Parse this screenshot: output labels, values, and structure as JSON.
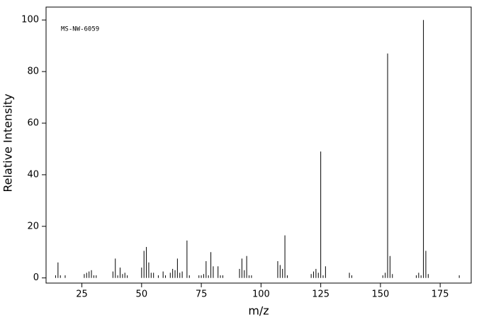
{
  "chart_data": {
    "type": "stem",
    "annotation": "MS-NW-6059",
    "x_label": "m/z",
    "y_label": "Relative Intensity",
    "color": "#000000",
    "x": [
      14,
      15,
      16,
      18,
      26,
      27,
      28,
      29,
      30,
      31,
      38,
      39,
      40,
      41,
      42,
      43,
      44,
      50,
      51,
      52,
      53,
      54,
      55,
      57,
      59,
      60,
      62,
      63,
      64,
      65,
      66,
      67,
      69,
      70,
      74,
      75,
      76,
      77,
      78,
      79,
      80,
      82,
      83,
      84,
      91,
      92,
      93,
      94,
      95,
      96,
      107,
      108,
      109,
      110,
      111,
      121,
      122,
      123,
      124,
      125,
      126,
      127,
      137,
      138,
      151,
      152,
      153,
      154,
      155,
      165,
      166,
      167,
      168,
      169,
      170,
      183
    ],
    "values": [
      1,
      6,
      1,
      1,
      1.5,
      2,
      2.5,
      3,
      1,
      1,
      2.5,
      7.5,
      1,
      4,
      1.5,
      2,
      1,
      4,
      10.5,
      12,
      6,
      2,
      2,
      1,
      2.5,
      1,
      2,
      3.5,
      3,
      7.5,
      2,
      2.5,
      14.5,
      1,
      1,
      1,
      1.5,
      6.5,
      1,
      10,
      4.5,
      4.5,
      1,
      1,
      3.5,
      7.5,
      3,
      8.5,
      1,
      1,
      6.5,
      5,
      3.5,
      16.5,
      1,
      1.5,
      2.5,
      3.5,
      2,
      49,
      1,
      4.5,
      2,
      1,
      1,
      2,
      87,
      8.5,
      1.5,
      1,
      2,
      1,
      100,
      10.5,
      1.5,
      1
    ],
    "xlim": [
      10,
      188
    ],
    "ylim": [
      -2,
      105
    ],
    "xticks": [
      25,
      50,
      75,
      100,
      125,
      150,
      175
    ],
    "yticks": [
      0,
      20,
      40,
      60,
      80,
      100
    ]
  }
}
